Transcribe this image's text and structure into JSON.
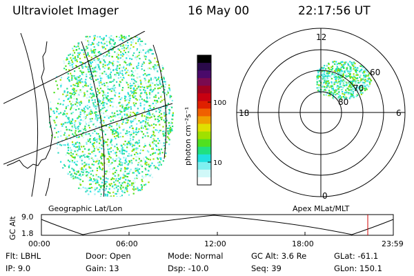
{
  "header": {
    "instrument": "Ultraviolet Imager",
    "date": "16 May 00",
    "time": "22:17:56 UT"
  },
  "colorbar": {
    "unit_label": "photon cm⁻²s⁻¹",
    "tick_labels": [
      "100",
      "10"
    ],
    "colors": [
      "#000000",
      "#2a0a4a",
      "#4a0a6a",
      "#7a0a50",
      "#a00020",
      "#c80010",
      "#e02000",
      "#f06000",
      "#f0a000",
      "#e0e000",
      "#a0e000",
      "#50e020",
      "#20e080",
      "#20e0e0",
      "#80f0f0",
      "#d0f8f8",
      "#ffffff"
    ]
  },
  "left_panel": {
    "label": "Geographic Lat/Lon"
  },
  "polar_plot": {
    "label": "Apex MLat/MLT",
    "mlt_labels": {
      "top": "12",
      "left": "18",
      "right": "6",
      "bottom": "0"
    },
    "lat_labels": [
      "60",
      "70",
      "80"
    ]
  },
  "altitude_strip": {
    "ylabel": "GC Alt",
    "y_ticks": [
      "9.0",
      "1.8"
    ],
    "x_ticks": [
      "00:00",
      "06:00",
      "12:00",
      "18:00",
      "23:59"
    ],
    "marker_color": "#d00000"
  },
  "info": {
    "flt": "Flt: LBHL",
    "ip": "IP: 9.0",
    "door": "Door: Open",
    "gain": "Gain: 13",
    "mode": "Mode: Normal",
    "dsp": "Dsp: -10.0",
    "gcalt": "GC Alt: 3.6 Re",
    "seq": "Seq: 39",
    "glat": "GLat: -61.1",
    "glon": "GLon: 150.1"
  }
}
